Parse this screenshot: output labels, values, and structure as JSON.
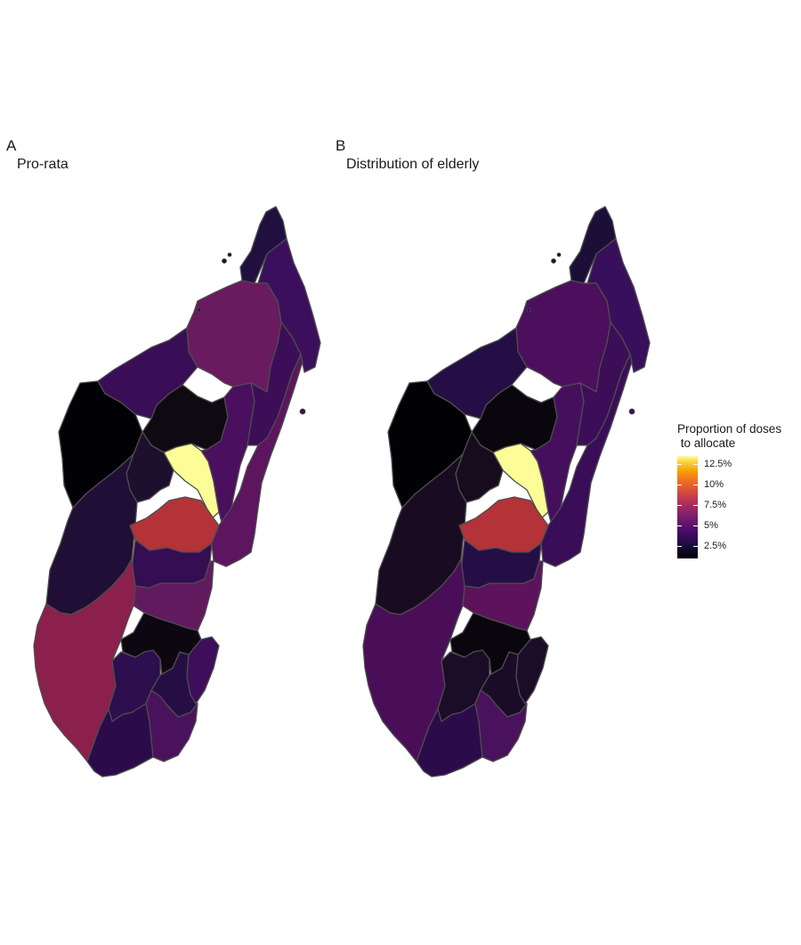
{
  "panels": [
    {
      "tag": "A",
      "subtitle": "Pro-rata",
      "regions": [
        {
          "name": "r1",
          "color": "#21103f"
        },
        {
          "name": "r2",
          "color": "#3b0f5c"
        },
        {
          "name": "r3",
          "color": "#6a1a5e"
        },
        {
          "name": "r4",
          "color": "#3a0e56"
        },
        {
          "name": "r5",
          "color": "#020105"
        },
        {
          "name": "r6",
          "color": "#0f0a12"
        },
        {
          "name": "r7",
          "color": "#fcfd96"
        },
        {
          "name": "r8",
          "color": "#4a0f5f"
        },
        {
          "name": "r9",
          "color": "#3c0e57"
        },
        {
          "name": "r10",
          "color": "#1d0f2e"
        },
        {
          "name": "r11",
          "color": "#200e37"
        },
        {
          "name": "r12",
          "color": "#b33339"
        },
        {
          "name": "r13",
          "color": "#350d52"
        },
        {
          "name": "r14",
          "color": "#5c155e"
        },
        {
          "name": "r15",
          "color": "#621a5f"
        },
        {
          "name": "r16",
          "color": "#8b204c"
        },
        {
          "name": "r17",
          "color": "#0c0711"
        },
        {
          "name": "r18",
          "color": "#2d0e4e"
        },
        {
          "name": "r19",
          "color": "#260e45"
        },
        {
          "name": "r20",
          "color": "#3e0e5a"
        },
        {
          "name": "r21",
          "color": "#2c0b4b"
        },
        {
          "name": "r22",
          "color": "#4a125c"
        }
      ]
    },
    {
      "tag": "B",
      "subtitle": "Distribution of elderly",
      "regions": [
        {
          "name": "r1",
          "color": "#1b0f38"
        },
        {
          "name": "r2",
          "color": "#380f5a"
        },
        {
          "name": "r3",
          "color": "#4b0f5e"
        },
        {
          "name": "r4",
          "color": "#250e45"
        },
        {
          "name": "r5",
          "color": "#020105"
        },
        {
          "name": "r6",
          "color": "#09060d"
        },
        {
          "name": "r7",
          "color": "#fcfd96"
        },
        {
          "name": "r8",
          "color": "#450f5e"
        },
        {
          "name": "r9",
          "color": "#3c0e57"
        },
        {
          "name": "r10",
          "color": "#160c1e"
        },
        {
          "name": "r11",
          "color": "#190c22"
        },
        {
          "name": "r12",
          "color": "#b33339"
        },
        {
          "name": "r13",
          "color": "#250e45"
        },
        {
          "name": "r14",
          "color": "#3a0d59"
        },
        {
          "name": "r15",
          "color": "#5c135c"
        },
        {
          "name": "r16",
          "color": "#4a0e58"
        },
        {
          "name": "r17",
          "color": "#09060d"
        },
        {
          "name": "r18",
          "color": "#1b0c28"
        },
        {
          "name": "r19",
          "color": "#1a0c26"
        },
        {
          "name": "r20",
          "color": "#1b0c28"
        },
        {
          "name": "r21",
          "color": "#2c0b4b"
        },
        {
          "name": "r22",
          "color": "#4a125c"
        }
      ]
    }
  ],
  "legend": {
    "title": "Proportion of doses\n to allocate",
    "ticks": [
      {
        "label": "12.5%",
        "value": 12.5
      },
      {
        "label": "10%",
        "value": 10
      },
      {
        "label": "7.5%",
        "value": 7.5
      },
      {
        "label": "5%",
        "value": 5
      },
      {
        "label": "2.5%",
        "value": 2.5
      }
    ],
    "min": 1.0,
    "max": 13.5,
    "colors": [
      "#000004",
      "#1b0c41",
      "#4a0c6b",
      "#781c6d",
      "#a52c60",
      "#cf4446",
      "#ed6925",
      "#fb9b06",
      "#f7d13d",
      "#fcffa4"
    ]
  }
}
